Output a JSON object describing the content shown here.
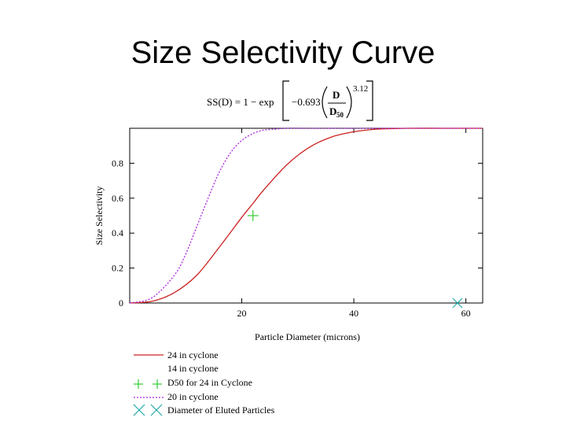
{
  "page": {
    "title": "Size Selectivity Curve"
  },
  "formula": {
    "lhs": "SS(D) = 1 − exp",
    "coef": "−0.693",
    "numerator": "D",
    "denominator": "D",
    "denominator_sub": "50",
    "exponent": "3.12"
  },
  "chart_data": {
    "type": "line",
    "title": "",
    "xlabel": "Particle Diameter (microns)",
    "ylabel": "Size Selectivity",
    "xlim": [
      0,
      63
    ],
    "ylim": [
      0,
      1
    ],
    "x_ticks": [
      20,
      40,
      60
    ],
    "x_tick_labels": [
      "20",
      "40",
      "60"
    ],
    "y_ticks": [
      0,
      0.2,
      0.4,
      0.6,
      0.8
    ],
    "y_tick_labels": [
      "0",
      "0.2",
      "0.4",
      "0.6",
      "0.8"
    ],
    "grid": false,
    "legend_placement": "below",
    "series": [
      {
        "name": "24 in cyclone",
        "kind": "line",
        "color": "#cc2222",
        "style": "solid",
        "x": [
          0,
          4,
          8,
          12,
          16,
          20,
          22,
          24,
          28,
          32,
          36,
          40,
          44,
          50,
          56,
          63
        ],
        "y": [
          0,
          0.01,
          0.06,
          0.16,
          0.32,
          0.49,
          0.57,
          0.65,
          0.79,
          0.89,
          0.95,
          0.98,
          0.995,
          1,
          1,
          1
        ]
      },
      {
        "name": "14 in cyclone",
        "kind": "line",
        "color": "#ffffff",
        "style": "none",
        "x": [],
        "y": []
      },
      {
        "name": "D50 for 24 in Cyclone",
        "kind": "marker",
        "marker": "plus",
        "color": "#33cc33",
        "x": [
          22
        ],
        "y": [
          0.5
        ]
      },
      {
        "name": "20 in cyclone",
        "kind": "line",
        "color": "#aa22dd",
        "style": "dotted",
        "x": [
          0,
          4,
          8,
          10,
          12,
          14,
          16,
          18,
          20,
          22,
          24,
          26,
          28,
          32,
          36,
          40,
          63
        ],
        "y": [
          0,
          0.03,
          0.16,
          0.28,
          0.44,
          0.6,
          0.75,
          0.86,
          0.93,
          0.97,
          0.99,
          0.995,
          1,
          1,
          1,
          1,
          1
        ]
      },
      {
        "name": "Diameter of Eluted Particles",
        "kind": "marker",
        "marker": "x",
        "color": "#22aaaa",
        "x": [
          58.5
        ],
        "y": [
          0
        ]
      }
    ]
  }
}
